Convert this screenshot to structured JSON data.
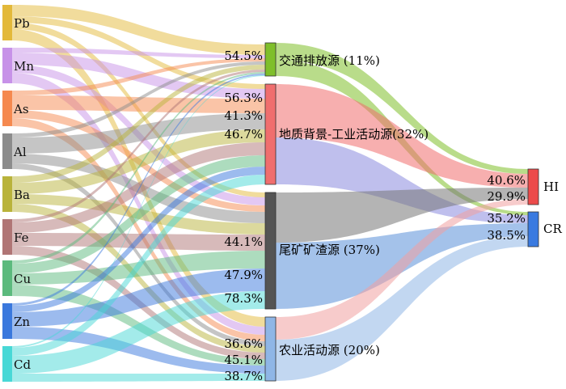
{
  "diagram": {
    "sources": [
      {
        "id": "pb",
        "label": "Pb",
        "color": "#e3b93a"
      },
      {
        "id": "mn",
        "label": "Mn",
        "color": "#c792e8"
      },
      {
        "id": "as",
        "label": "As",
        "color": "#f5894f"
      },
      {
        "id": "al",
        "label": "Al",
        "color": "#8c8c8c"
      },
      {
        "id": "ba",
        "label": "Ba",
        "color": "#b9b33b"
      },
      {
        "id": "fe",
        "label": "Fe",
        "color": "#b07575"
      },
      {
        "id": "cu",
        "label": "Cu",
        "color": "#5cba7d"
      },
      {
        "id": "zn",
        "label": "Zn",
        "color": "#3a78dd"
      },
      {
        "id": "cd",
        "label": "Cd",
        "color": "#48d8d6"
      }
    ],
    "middle": [
      {
        "id": "traffic",
        "label": "交通排放源 (11%)",
        "color": "#7fbf2a"
      },
      {
        "id": "geo",
        "label": "地质背景-工业活动源(32%)",
        "color": "#f06e6e"
      },
      {
        "id": "tail",
        "label": "尾矿矿渣源 (37%)",
        "color": "#545454"
      },
      {
        "id": "agri",
        "label": "农业活动源 (20%)",
        "color": "#8fb6e6"
      }
    ],
    "targets": [
      {
        "id": "hi",
        "label": "HI",
        "color": "#ec4b4b"
      },
      {
        "id": "cr",
        "label": "CR",
        "color": "#3a7ae0"
      }
    ],
    "percent_labels": {
      "traffic": [
        "54.5%"
      ],
      "geo": [
        "56.3%",
        "41.3%",
        "46.7%"
      ],
      "tail": [
        "44.1%",
        "47.9%",
        "78.3%"
      ],
      "agri": [
        "36.6%",
        "45.1%",
        "38.7%"
      ],
      "hi": [
        "40.6%",
        "29.9%"
      ],
      "cr": [
        "35.2%",
        "38.5%"
      ]
    }
  }
}
